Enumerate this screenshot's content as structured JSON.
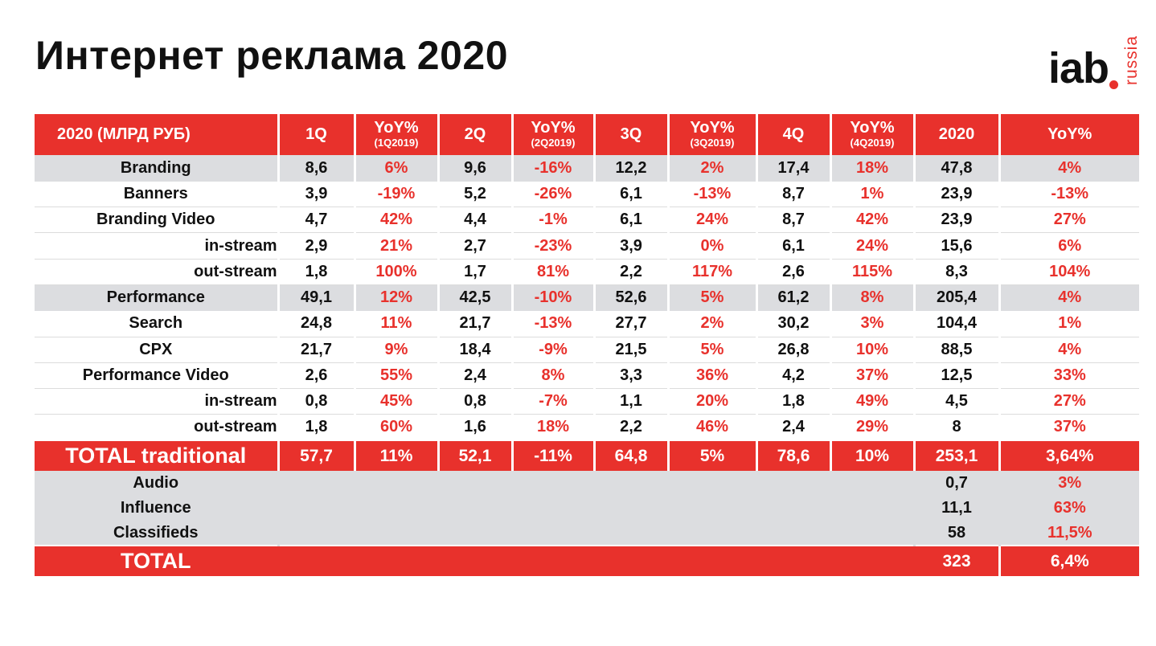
{
  "title": "Интернет реклама 2020",
  "logo": {
    "main": "iab",
    "sub": "russia"
  },
  "header": {
    "first": "2020 (МЛРД РУБ)",
    "q1": "1Q",
    "yoy1": "YoY%",
    "yoy1_sub": "(1Q2019)",
    "q2": "2Q",
    "yoy2": "YoY%",
    "yoy2_sub": "(2Q2019)",
    "q3": "3Q",
    "yoy3": "YoY%",
    "yoy3_sub": "(3Q2019)",
    "q4": "4Q",
    "yoy4": "YoY%",
    "yoy4_sub": "(4Q2019)",
    "year": "2020",
    "yoy": "YoY%"
  },
  "rows": [
    {
      "label": "Branding",
      "q1": "8,6",
      "y1": "6%",
      "q2": "9,6",
      "y2": "-16%",
      "q3": "12,2",
      "y3": "2%",
      "q4": "17,4",
      "y4": "18%",
      "total": "47,8",
      "yoy": "4%"
    },
    {
      "label": "Banners",
      "q1": "3,9",
      "y1": "-19%",
      "q2": "5,2",
      "y2": "-26%",
      "q3": "6,1",
      "y3": "-13%",
      "q4": "8,7",
      "y4": "1%",
      "total": "23,9",
      "yoy": "-13%"
    },
    {
      "label": "Branding Video",
      "q1": "4,7",
      "y1": "42%",
      "q2": "4,4",
      "y2": "-1%",
      "q3": "6,1",
      "y3": "24%",
      "q4": "8,7",
      "y4": "42%",
      "total": "23,9",
      "yoy": "27%"
    },
    {
      "label": "in-stream",
      "q1": "2,9",
      "y1": "21%",
      "q2": "2,7",
      "y2": "-23%",
      "q3": "3,9",
      "y3": "0%",
      "q4": "6,1",
      "y4": "24%",
      "total": "15,6",
      "yoy": "6%"
    },
    {
      "label": "out-stream",
      "q1": "1,8",
      "y1": "100%",
      "q2": "1,7",
      "y2": "81%",
      "q3": "2,2",
      "y3": "117%",
      "q4": "2,6",
      "y4": "115%",
      "total": "8,3",
      "yoy": "104%"
    },
    {
      "label": "Performance",
      "q1": "49,1",
      "y1": "12%",
      "q2": "42,5",
      "y2": "-10%",
      "q3": "52,6",
      "y3": "5%",
      "q4": "61,2",
      "y4": "8%",
      "total": "205,4",
      "yoy": "4%"
    },
    {
      "label": "Search",
      "q1": "24,8",
      "y1": "11%",
      "q2": "21,7",
      "y2": "-13%",
      "q3": "27,7",
      "y3": "2%",
      "q4": "30,2",
      "y4": "3%",
      "total": "104,4",
      "yoy": "1%"
    },
    {
      "label": "CPX",
      "q1": "21,7",
      "y1": "9%",
      "q2": "18,4",
      "y2": "-9%",
      "q3": "21,5",
      "y3": "5%",
      "q4": "26,8",
      "y4": "10%",
      "total": "88,5",
      "yoy": "4%"
    },
    {
      "label": "Performance Video",
      "q1": "2,6",
      "y1": "55%",
      "q2": "2,4",
      "y2": "8%",
      "q3": "3,3",
      "y3": "36%",
      "q4": "4,2",
      "y4": "37%",
      "total": "12,5",
      "yoy": "33%"
    },
    {
      "label": "in-stream",
      "q1": "0,8",
      "y1": "45%",
      "q2": "0,8",
      "y2": "-7%",
      "q3": "1,1",
      "y3": "20%",
      "q4": "1,8",
      "y4": "49%",
      "total": "4,5",
      "yoy": "27%"
    },
    {
      "label": "out-stream",
      "q1": "1,8",
      "y1": "60%",
      "q2": "1,6",
      "y2": "18%",
      "q3": "2,2",
      "y3": "46%",
      "q4": "2,4",
      "y4": "29%",
      "total": "8",
      "yoy": "37%"
    }
  ],
  "total_traditional": {
    "label": "TOTAL traditional",
    "q1": "57,7",
    "y1": "11%",
    "q2": "52,1",
    "y2": "-11%",
    "q3": "64,8",
    "y3": "5%",
    "q4": "78,6",
    "y4": "10%",
    "total": "253,1",
    "yoy": "3,64%"
  },
  "extras": [
    {
      "label": "Audio",
      "total": "0,7",
      "yoy": "3%"
    },
    {
      "label": "Influence",
      "total": "11,1",
      "yoy": "63%"
    },
    {
      "label": "Classifieds",
      "total": "58",
      "yoy": "11,5%"
    }
  ],
  "grand_total": {
    "label": "TOTAL",
    "total": "323",
    "yoy": "6,4%"
  },
  "colors": {
    "accent": "#e8312c",
    "row_gray": "#dcdde0"
  }
}
